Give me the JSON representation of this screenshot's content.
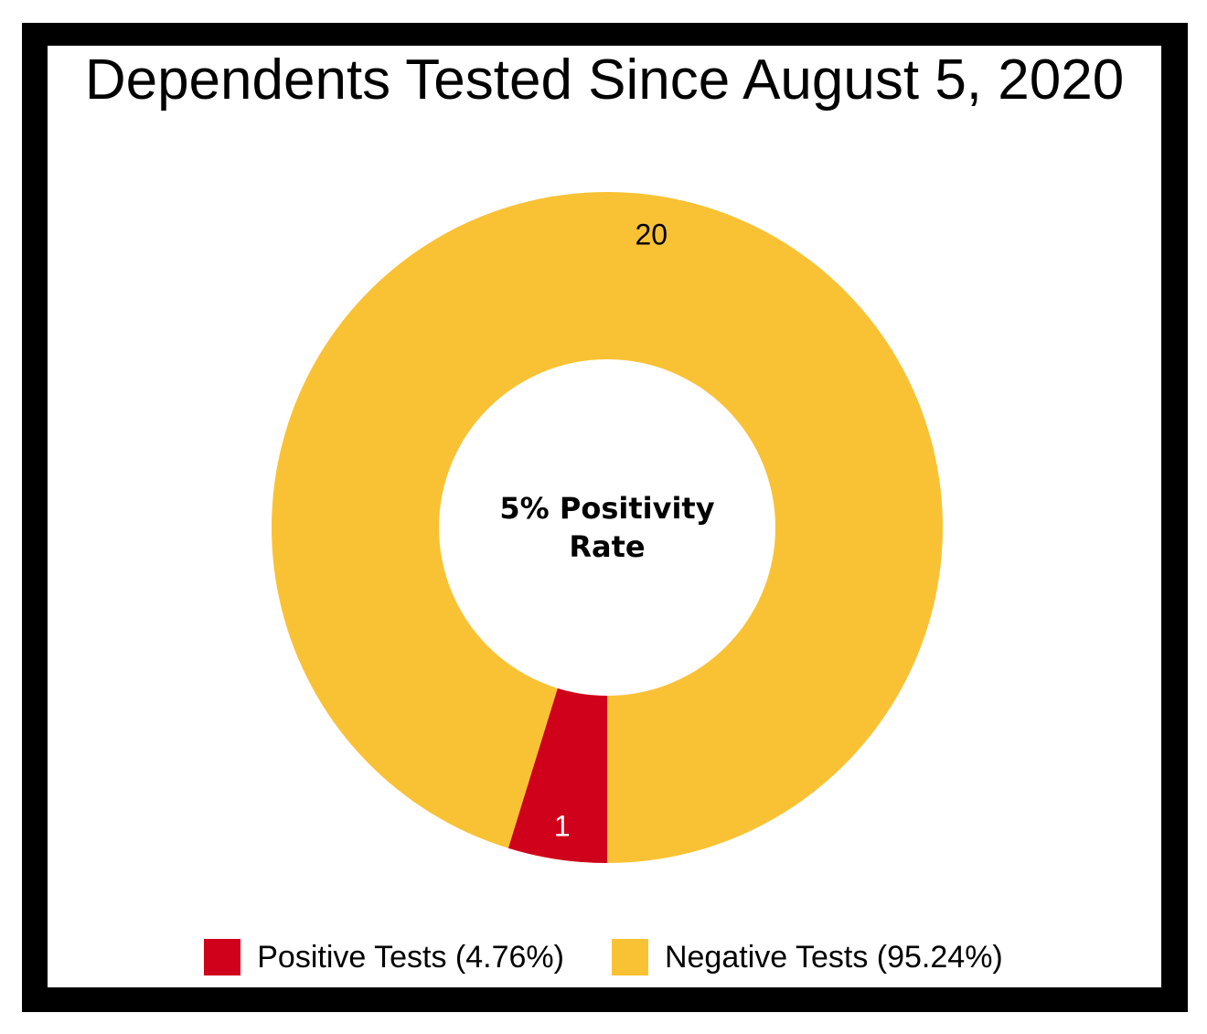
{
  "chart_data": {
    "type": "pie",
    "title": "Dependents Tested Since August 5, 2020",
    "center_text": [
      "5% Positivity",
      "Rate"
    ],
    "slices": [
      {
        "name": "Positive Tests (4.76%)",
        "value": 1,
        "color": "#D0021B",
        "label_color": "#ffffff"
      },
      {
        "name": "Negative Tests (95.24%)",
        "value": 20,
        "color": "#F9C235",
        "label_color": "#000000"
      }
    ],
    "legend": "bottom"
  }
}
